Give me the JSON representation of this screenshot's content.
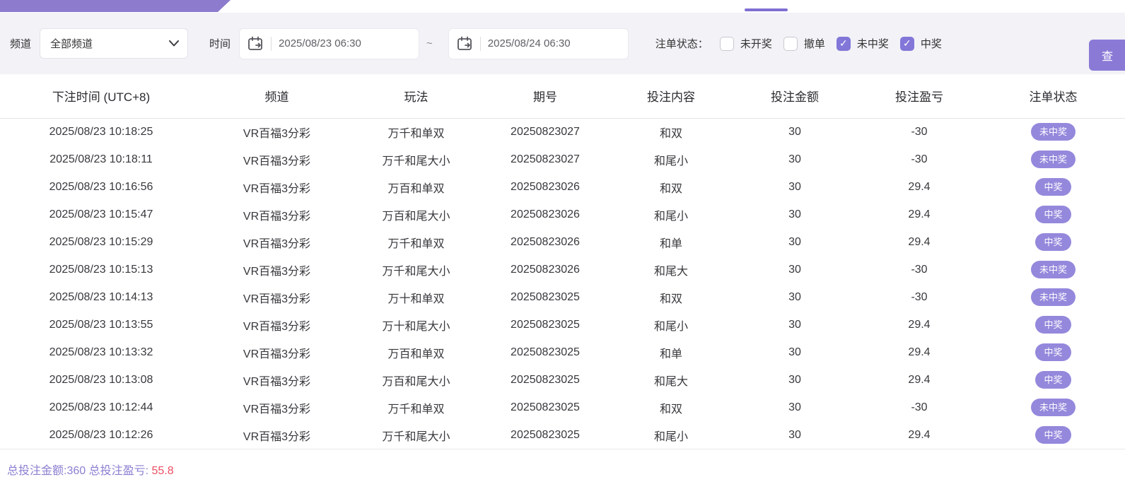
{
  "colors": {
    "accent_purple": "#8a7ad6",
    "topbar_purple": "#8d7bce",
    "pill_purple": "#9488dc",
    "checkbox_purple": "#8276d8",
    "win_red": "#ed4f63",
    "loss_green": "#3fb389",
    "summary_purple": "#8a7fd2",
    "filter_bg": "#f2f2f7"
  },
  "filters": {
    "channel_label": "频道",
    "channel_value": "全部频道",
    "time_label": "时间",
    "date_from": "2025/08/23 06:30",
    "date_to": "2025/08/24 06:30",
    "range_separator": "~",
    "status_label": "注单状态：",
    "status_options": [
      {
        "label": "未开奖",
        "checked": false
      },
      {
        "label": "撤单",
        "checked": false
      },
      {
        "label": "未中奖",
        "checked": true
      },
      {
        "label": "中奖",
        "checked": true
      }
    ],
    "search_label": "查"
  },
  "table": {
    "columns": [
      "下注时间 (UTC+8)",
      "频道",
      "玩法",
      "期号",
      "投注内容",
      "投注金额",
      "投注盈亏",
      "注单状态"
    ],
    "rows": [
      {
        "time": "2025/08/23 10:18:25",
        "channel": "VR百福3分彩",
        "play": "万千和单双",
        "issue": "20250823027",
        "content": "和双",
        "amount": "30",
        "pnl": "-30",
        "pnl_type": "loss",
        "status": "未中奖"
      },
      {
        "time": "2025/08/23 10:18:11",
        "channel": "VR百福3分彩",
        "play": "万千和尾大小",
        "issue": "20250823027",
        "content": "和尾小",
        "amount": "30",
        "pnl": "-30",
        "pnl_type": "loss",
        "status": "未中奖"
      },
      {
        "time": "2025/08/23 10:16:56",
        "channel": "VR百福3分彩",
        "play": "万百和单双",
        "issue": "20250823026",
        "content": "和双",
        "amount": "30",
        "pnl": "29.4",
        "pnl_type": "win",
        "status": "中奖"
      },
      {
        "time": "2025/08/23 10:15:47",
        "channel": "VR百福3分彩",
        "play": "万百和尾大小",
        "issue": "20250823026",
        "content": "和尾小",
        "amount": "30",
        "pnl": "29.4",
        "pnl_type": "win",
        "status": "中奖"
      },
      {
        "time": "2025/08/23 10:15:29",
        "channel": "VR百福3分彩",
        "play": "万千和单双",
        "issue": "20250823026",
        "content": "和单",
        "amount": "30",
        "pnl": "29.4",
        "pnl_type": "win",
        "status": "中奖"
      },
      {
        "time": "2025/08/23 10:15:13",
        "channel": "VR百福3分彩",
        "play": "万千和尾大小",
        "issue": "20250823026",
        "content": "和尾大",
        "amount": "30",
        "pnl": "-30",
        "pnl_type": "loss",
        "status": "未中奖"
      },
      {
        "time": "2025/08/23 10:14:13",
        "channel": "VR百福3分彩",
        "play": "万十和单双",
        "issue": "20250823025",
        "content": "和双",
        "amount": "30",
        "pnl": "-30",
        "pnl_type": "loss",
        "status": "未中奖"
      },
      {
        "time": "2025/08/23 10:13:55",
        "channel": "VR百福3分彩",
        "play": "万十和尾大小",
        "issue": "20250823025",
        "content": "和尾小",
        "amount": "30",
        "pnl": "29.4",
        "pnl_type": "win",
        "status": "中奖"
      },
      {
        "time": "2025/08/23 10:13:32",
        "channel": "VR百福3分彩",
        "play": "万百和单双",
        "issue": "20250823025",
        "content": "和单",
        "amount": "30",
        "pnl": "29.4",
        "pnl_type": "win",
        "status": "中奖"
      },
      {
        "time": "2025/08/23 10:13:08",
        "channel": "VR百福3分彩",
        "play": "万百和尾大小",
        "issue": "20250823025",
        "content": "和尾大",
        "amount": "30",
        "pnl": "29.4",
        "pnl_type": "win",
        "status": "中奖"
      },
      {
        "time": "2025/08/23 10:12:44",
        "channel": "VR百福3分彩",
        "play": "万千和单双",
        "issue": "20250823025",
        "content": "和双",
        "amount": "30",
        "pnl": "-30",
        "pnl_type": "loss",
        "status": "未中奖"
      },
      {
        "time": "2025/08/23 10:12:26",
        "channel": "VR百福3分彩",
        "play": "万千和尾大小",
        "issue": "20250823025",
        "content": "和尾小",
        "amount": "30",
        "pnl": "29.4",
        "pnl_type": "win",
        "status": "中奖"
      }
    ]
  },
  "summary": {
    "totals_text": "总投注金额:360 总投注盈亏:",
    "total_pnl": "55.8"
  }
}
